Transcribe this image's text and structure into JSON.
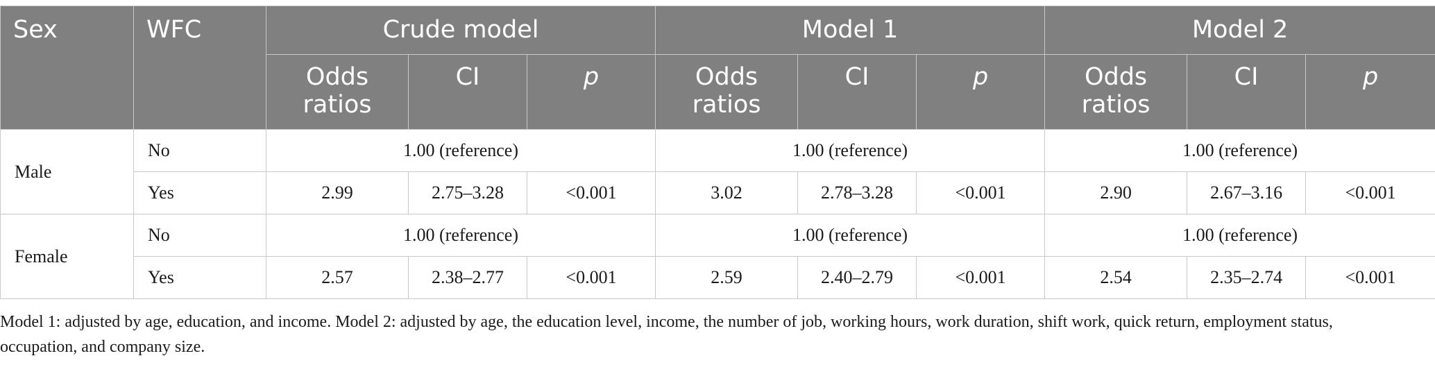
{
  "table": {
    "header": {
      "sex": "Sex",
      "wfc": "WFC",
      "groups": [
        "Crude model",
        "Model 1",
        "Model 2"
      ],
      "subheaders": [
        {
          "text": "Odds ratios",
          "italic": false
        },
        {
          "text": "CI",
          "italic": false
        },
        {
          "text": "p",
          "italic": true
        }
      ]
    },
    "rows": [
      {
        "sex": "Male",
        "no": {
          "wfc": "No",
          "models": [
            "1.00 (reference)",
            "1.00 (reference)",
            "1.00 (reference)"
          ]
        },
        "yes": {
          "wfc": "Yes",
          "models": [
            {
              "or": "2.99",
              "ci": "2.75–3.28",
              "p": "<0.001"
            },
            {
              "or": "3.02",
              "ci": "2.78–3.28",
              "p": "<0.001"
            },
            {
              "or": "2.90",
              "ci": "2.67–3.16",
              "p": "<0.001"
            }
          ]
        }
      },
      {
        "sex": "Female",
        "no": {
          "wfc": "No",
          "models": [
            "1.00 (reference)",
            "1.00 (reference)",
            "1.00 (reference)"
          ]
        },
        "yes": {
          "wfc": "Yes",
          "models": [
            {
              "or": "2.57",
              "ci": "2.38–2.77",
              "p": "<0.001"
            },
            {
              "or": "2.59",
              "ci": "2.40–2.79",
              "p": "<0.001"
            },
            {
              "or": "2.54",
              "ci": "2.35–2.74",
              "p": "<0.001"
            }
          ]
        }
      }
    ]
  },
  "footnote": "Model 1: adjusted by age, education, and income. Model 2: adjusted by age, the education level, income, the number of job, working hours, work duration, shift work, quick return, employment status, occupation, and company size."
}
